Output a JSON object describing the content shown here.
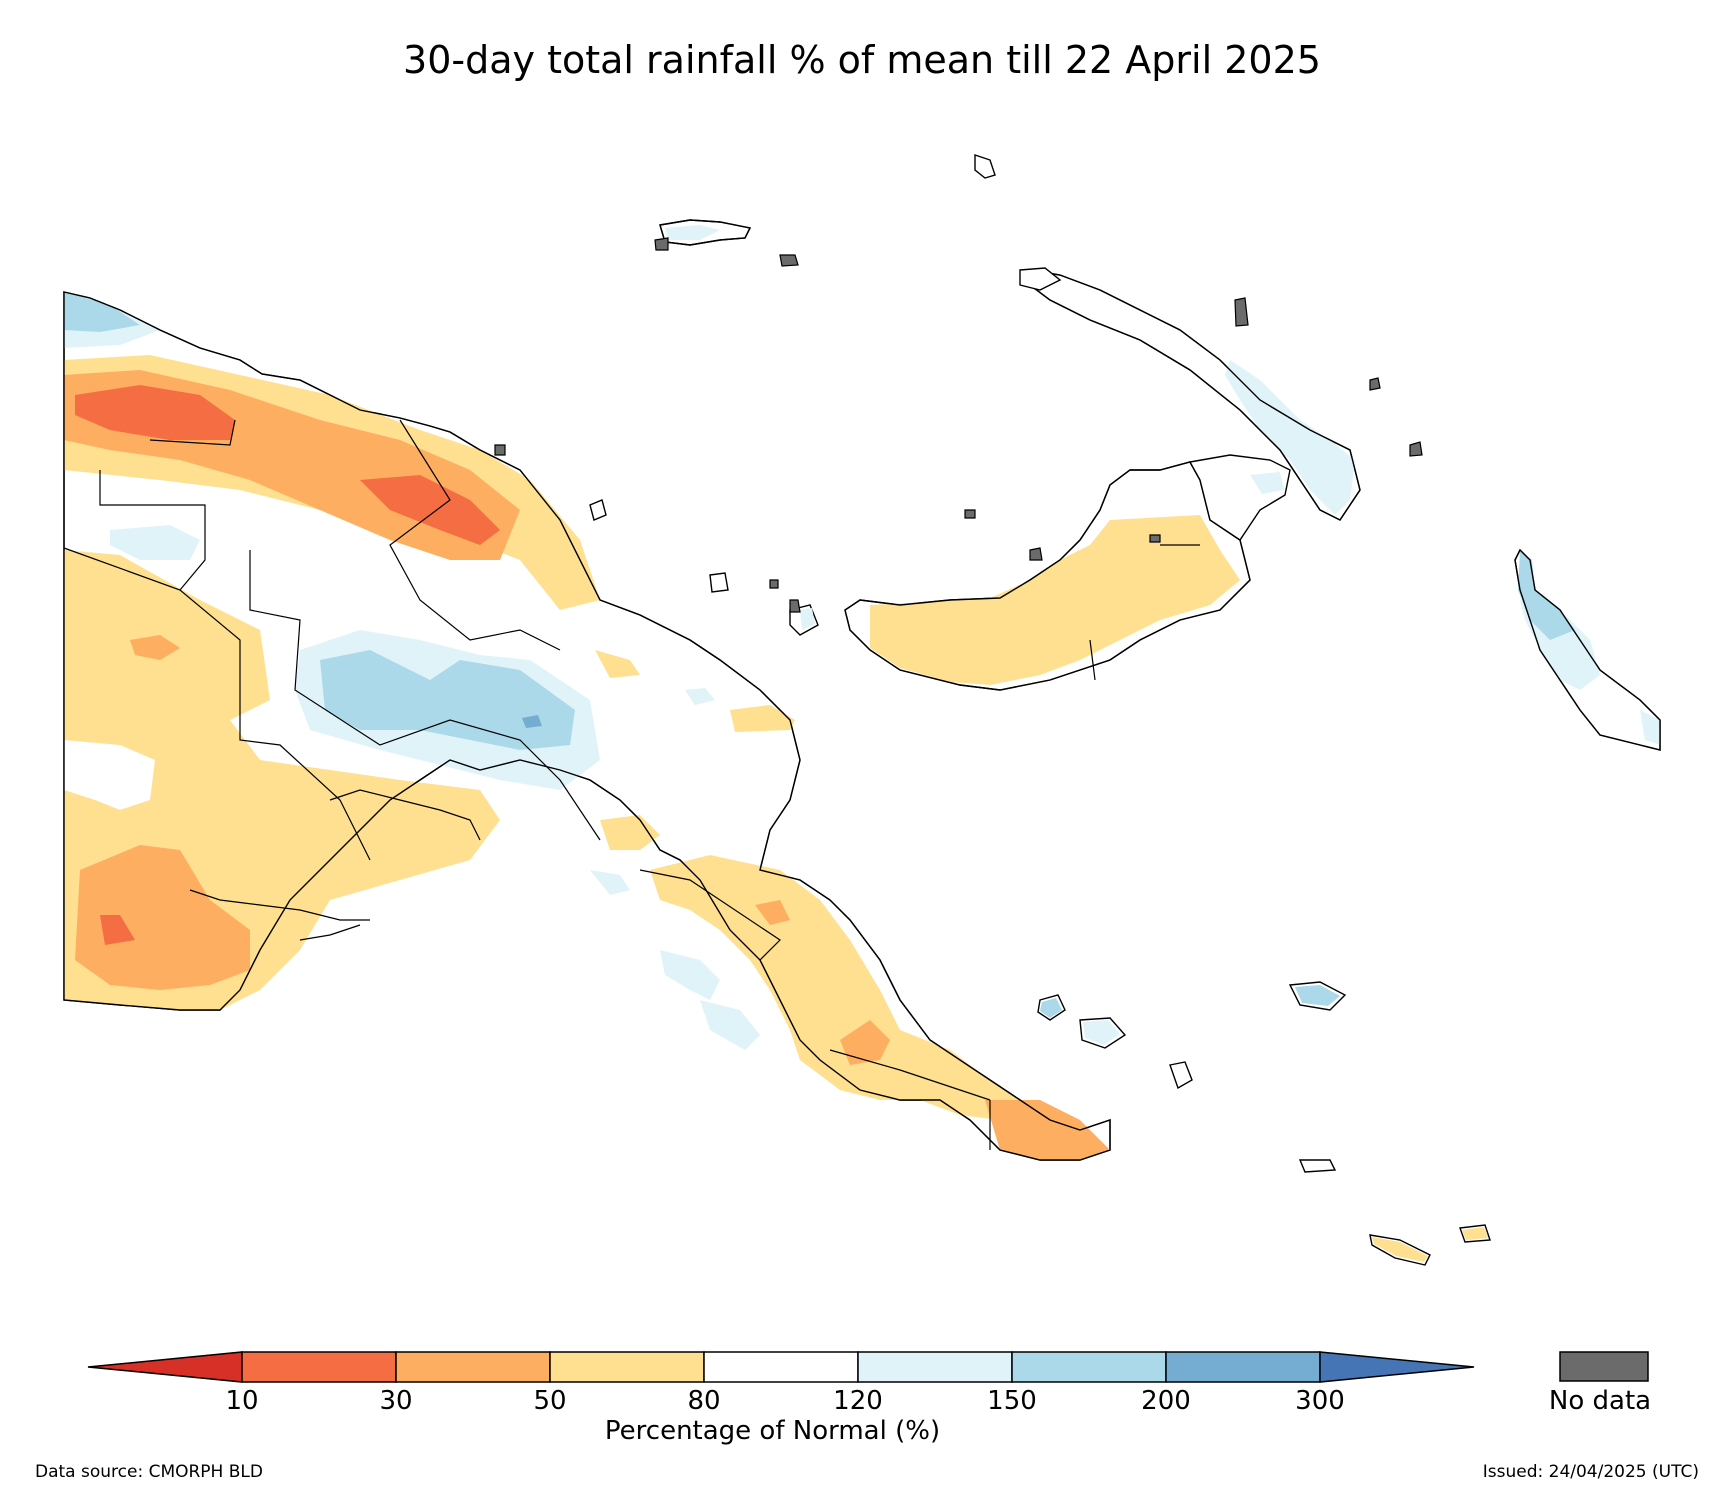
{
  "title": "30-day total rainfall % of mean till 22 April 2025",
  "colorbar": {
    "label": "Percentage of Normal (%)",
    "ticks": [
      "10",
      "30",
      "50",
      "80",
      "120",
      "150",
      "200",
      "300"
    ],
    "bins": [
      {
        "range": "<10",
        "color": "#d73027"
      },
      {
        "range": "10-30",
        "color": "#f46d43"
      },
      {
        "range": "30-50",
        "color": "#fdae61"
      },
      {
        "range": "50-80",
        "color": "#fee090"
      },
      {
        "range": "80-120",
        "color": "#ffffff"
      },
      {
        "range": "120-150",
        "color": "#e0f3f8"
      },
      {
        "range": "150-200",
        "color": "#abd9e9"
      },
      {
        "range": "200-300",
        "color": "#74add1"
      },
      {
        "range": ">300",
        "color": "#4575b4"
      }
    ],
    "nodata_label": "No data",
    "nodata_color": "#6b6b6b"
  },
  "footer": {
    "source": "Data source: CMORPH BLD",
    "issued": "Issued: 24/04/2025 (UTC)"
  }
}
